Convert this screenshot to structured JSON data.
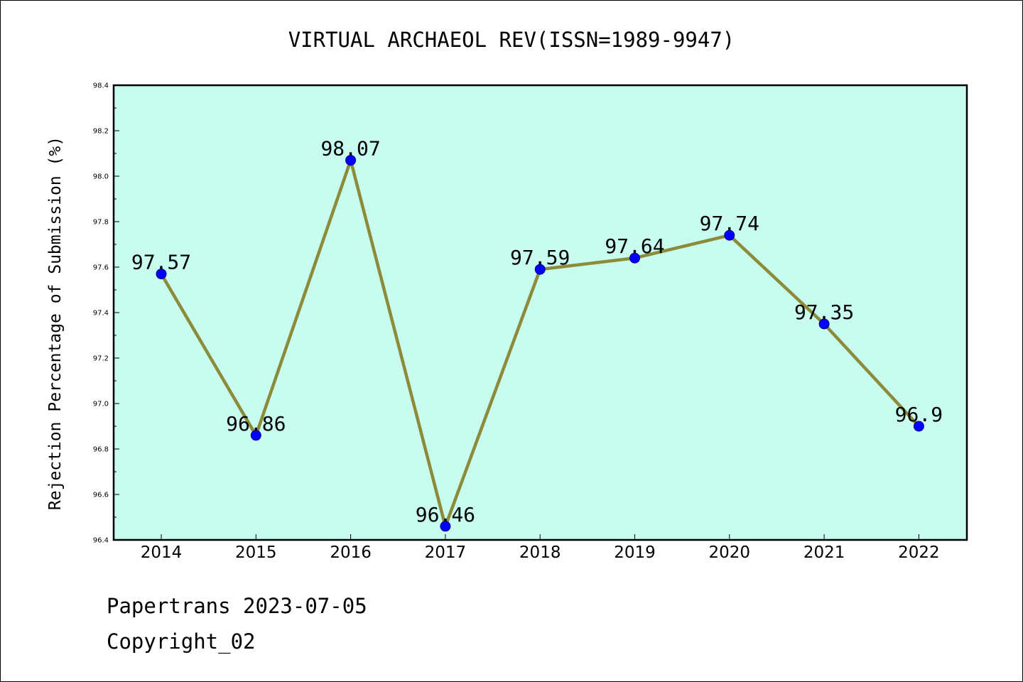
{
  "chart_data": {
    "type": "line",
    "title": "VIRTUAL ARCHAEOL REV(ISSN=1989-9947)",
    "xlabel": "",
    "ylabel": "Rejection Percentage of Submission (%)",
    "categories": [
      "2014",
      "2015",
      "2016",
      "2017",
      "2018",
      "2019",
      "2020",
      "2021",
      "2022"
    ],
    "series": [
      {
        "values": [
          97.57,
          96.86,
          98.07,
          96.46,
          97.59,
          97.64,
          97.74,
          97.35,
          96.9
        ],
        "labels": [
          "97.57",
          "96.86",
          "98.07",
          "96.46",
          "97.59",
          "97.64",
          "97.74",
          "97.35",
          "96.9"
        ],
        "line_color": "#8b8b3a",
        "marker_color": "#0000ff"
      }
    ],
    "ylim": [
      96.4,
      98.4
    ],
    "yticks": [
      "96.4",
      "96.6",
      "96.8",
      "97.0",
      "97.2",
      "97.4",
      "97.6",
      "97.8",
      "98.0",
      "98.2",
      "98.4"
    ],
    "grid": false,
    "plot_background": "#c8fcee"
  },
  "footer": {
    "line1": "Papertrans 2023-07-05",
    "line2": "Copyright_02"
  }
}
